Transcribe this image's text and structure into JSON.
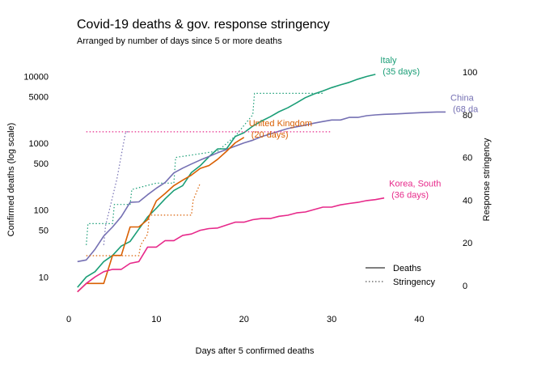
{
  "chart_data": {
    "type": "line",
    "title": "Covid-19 deaths & gov. response stringency",
    "subtitle": "Arranged by number of days since 5 or more deaths",
    "xlabel": "Days after 5 confirmed deaths",
    "ylabel": "Confirmed deaths (log scale)",
    "y2label": "Response stringency",
    "xlim": [
      0,
      43
    ],
    "ylim": [
      3.5,
      15000
    ],
    "y_scale": "log",
    "y2lim": [
      0,
      100
    ],
    "grid": false,
    "x_ticks": [
      "0",
      "10",
      "20",
      "30",
      "40"
    ],
    "y_ticks": [
      "10",
      "50",
      "100",
      "500",
      "1000",
      "5000",
      "10000"
    ],
    "y2_ticks": [
      "0",
      "20",
      "40",
      "60",
      "80",
      "100"
    ],
    "legend": {
      "position": "bottom-right",
      "entries": [
        {
          "label": "Deaths",
          "style": "solid"
        },
        {
          "label": "Stringency",
          "style": "dotted"
        }
      ]
    },
    "series": [
      {
        "name": "Italy",
        "label_lines": [
          "Italy",
          "(35 days)"
        ],
        "color": "#1b9e77",
        "deaths": [
          [
            1,
            7
          ],
          [
            2,
            10
          ],
          [
            3,
            12
          ],
          [
            4,
            17
          ],
          [
            5,
            21
          ],
          [
            6,
            29
          ],
          [
            7,
            34
          ],
          [
            8,
            52
          ],
          [
            9,
            79
          ],
          [
            10,
            107
          ],
          [
            11,
            148
          ],
          [
            12,
            197
          ],
          [
            13,
            233
          ],
          [
            14,
            366
          ],
          [
            15,
            463
          ],
          [
            16,
            631
          ],
          [
            17,
            827
          ],
          [
            18,
            827
          ],
          [
            19,
            1266
          ],
          [
            20,
            1441
          ],
          [
            21,
            1809
          ],
          [
            22,
            2158
          ],
          [
            23,
            2503
          ],
          [
            24,
            2978
          ],
          [
            25,
            3405
          ],
          [
            26,
            4032
          ],
          [
            27,
            4825
          ],
          [
            28,
            5476
          ],
          [
            29,
            6077
          ],
          [
            30,
            6820
          ],
          [
            31,
            7503
          ],
          [
            32,
            8165
          ],
          [
            33,
            9134
          ],
          [
            34,
            10023
          ],
          [
            35,
            10779
          ]
        ],
        "stringency": [
          [
            2,
            19
          ],
          [
            2.2,
            29
          ],
          [
            5,
            29
          ],
          [
            5.2,
            38
          ],
          [
            7,
            38
          ],
          [
            7.2,
            45
          ],
          [
            10,
            48
          ],
          [
            12,
            48
          ],
          [
            12.2,
            60
          ],
          [
            17,
            63
          ],
          [
            19,
            70
          ],
          [
            21,
            80
          ],
          [
            21.2,
            90
          ],
          [
            29,
            90
          ]
        ]
      },
      {
        "name": "China",
        "label_lines": [
          "China",
          "(68 da"
        ],
        "color": "#7570b3",
        "deaths": [
          [
            1,
            17
          ],
          [
            2,
            18
          ],
          [
            3,
            26
          ],
          [
            4,
            41
          ],
          [
            5,
            56
          ],
          [
            6,
            80
          ],
          [
            7,
            131
          ],
          [
            8,
            133
          ],
          [
            9,
            170
          ],
          [
            10,
            213
          ],
          [
            11,
            259
          ],
          [
            12,
            361
          ],
          [
            13,
            425
          ],
          [
            14,
            491
          ],
          [
            15,
            563
          ],
          [
            16,
            636
          ],
          [
            17,
            722
          ],
          [
            18,
            811
          ],
          [
            19,
            908
          ],
          [
            20,
            1016
          ],
          [
            21,
            1113
          ],
          [
            22,
            1259
          ],
          [
            23,
            1380
          ],
          [
            24,
            1523
          ],
          [
            25,
            1665
          ],
          [
            26,
            1770
          ],
          [
            27,
            1868
          ],
          [
            28,
            2004
          ],
          [
            29,
            2118
          ],
          [
            30,
            2236
          ],
          [
            31,
            2236
          ],
          [
            32,
            2442
          ],
          [
            33,
            2442
          ],
          [
            34,
            2592
          ],
          [
            35,
            2663
          ],
          [
            36,
            2715
          ],
          [
            37,
            2744
          ],
          [
            38,
            2788
          ],
          [
            39,
            2835
          ],
          [
            40,
            2870
          ],
          [
            41,
            2912
          ],
          [
            42,
            2943
          ],
          [
            43,
            2943
          ]
        ],
        "stringency": [
          [
            4,
            19
          ],
          [
            4.2,
            28
          ],
          [
            5.5,
            50
          ],
          [
            6.5,
            72
          ],
          [
            7,
            72
          ]
        ]
      },
      {
        "name": "United Kingdom",
        "label_lines": [
          "United Kingdom",
          "(20 days)"
        ],
        "color": "#d95f02",
        "deaths": [
          [
            1,
            6
          ],
          [
            2,
            8
          ],
          [
            3,
            8
          ],
          [
            4,
            8
          ],
          [
            5,
            21
          ],
          [
            6,
            21
          ],
          [
            7,
            56
          ],
          [
            8,
            56
          ],
          [
            9,
            72
          ],
          [
            10,
            138
          ],
          [
            11,
            178
          ],
          [
            12,
            233
          ],
          [
            13,
            281
          ],
          [
            14,
            335
          ],
          [
            15,
            422
          ],
          [
            16,
            465
          ],
          [
            17,
            578
          ],
          [
            18,
            759
          ],
          [
            19,
            1019
          ],
          [
            20,
            1228
          ]
        ],
        "stringency": [
          [
            2,
            14
          ],
          [
            2.2,
            14
          ],
          [
            8,
            14
          ],
          [
            8.2,
            19
          ],
          [
            9,
            24
          ],
          [
            9.2,
            33
          ],
          [
            14,
            33
          ],
          [
            14.2,
            40
          ],
          [
            15,
            48
          ]
        ]
      },
      {
        "name": "Korea, South",
        "label_lines": [
          "Korea, South",
          "(36 days)"
        ],
        "color": "#e7298a",
        "deaths": [
          [
            1,
            6
          ],
          [
            2,
            8
          ],
          [
            3,
            10
          ],
          [
            4,
            12
          ],
          [
            5,
            13
          ],
          [
            6,
            13
          ],
          [
            7,
            16
          ],
          [
            8,
            17
          ],
          [
            9,
            28
          ],
          [
            10,
            28
          ],
          [
            11,
            35
          ],
          [
            12,
            35
          ],
          [
            13,
            42
          ],
          [
            14,
            44
          ],
          [
            15,
            50
          ],
          [
            16,
            53
          ],
          [
            17,
            54
          ],
          [
            18,
            60
          ],
          [
            19,
            66
          ],
          [
            20,
            66
          ],
          [
            21,
            72
          ],
          [
            22,
            75
          ],
          [
            23,
            75
          ],
          [
            24,
            81
          ],
          [
            25,
            84
          ],
          [
            26,
            91
          ],
          [
            27,
            94
          ],
          [
            28,
            102
          ],
          [
            29,
            111
          ],
          [
            30,
            111
          ],
          [
            31,
            120
          ],
          [
            32,
            126
          ],
          [
            33,
            131
          ],
          [
            34,
            139
          ],
          [
            35,
            144
          ],
          [
            36,
            152
          ]
        ],
        "stringency": [
          [
            2,
            72
          ],
          [
            30,
            72
          ]
        ]
      }
    ]
  }
}
